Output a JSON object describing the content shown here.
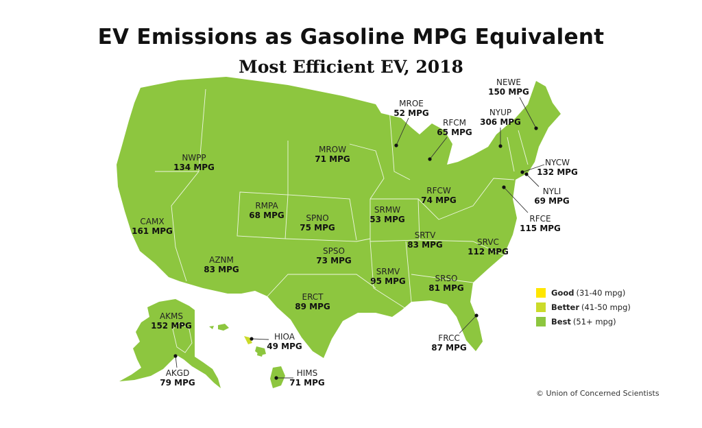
{
  "title": "EV Emissions as Gasoline MPG Equivalent",
  "subtitle": "Most Efficient EV, 2018",
  "colors": {
    "good": "#ffe600",
    "better": "#cbdb2a",
    "best": "#8dc63f",
    "border": "#ffffff"
  },
  "legend": [
    {
      "category": "good",
      "label": "Good",
      "range": "(31-40 mpg)"
    },
    {
      "category": "better",
      "label": "Better",
      "range": "(41-50 mpg)"
    },
    {
      "category": "best",
      "label": "Best",
      "range": "(51+ mpg)"
    }
  ],
  "regions": [
    {
      "code": "NEWE",
      "mpg": "150 MPG",
      "category": "best"
    },
    {
      "code": "NYUP",
      "mpg": "306 MPG",
      "category": "best"
    },
    {
      "code": "MROE",
      "mpg": "52 MPG",
      "category": "best"
    },
    {
      "code": "RFCM",
      "mpg": "65 MPG",
      "category": "best"
    },
    {
      "code": "NYCW",
      "mpg": "132 MPG",
      "category": "best"
    },
    {
      "code": "NYLI",
      "mpg": "69 MPG",
      "category": "best"
    },
    {
      "code": "RFCE",
      "mpg": "115 MPG",
      "category": "best"
    },
    {
      "code": "NWPP",
      "mpg": "134 MPG",
      "category": "best"
    },
    {
      "code": "MROW",
      "mpg": "71 MPG",
      "category": "best"
    },
    {
      "code": "CAMX",
      "mpg": "161 MPG",
      "category": "best"
    },
    {
      "code": "RMPA",
      "mpg": "68 MPG",
      "category": "best"
    },
    {
      "code": "SPNO",
      "mpg": "75 MPG",
      "category": "best"
    },
    {
      "code": "SRMW",
      "mpg": "53 MPG",
      "category": "best"
    },
    {
      "code": "RFCW",
      "mpg": "74 MPG",
      "category": "best"
    },
    {
      "code": "SRTV",
      "mpg": "83 MPG",
      "category": "best"
    },
    {
      "code": "SRVC",
      "mpg": "112 MPG",
      "category": "best"
    },
    {
      "code": "AZNM",
      "mpg": "83 MPG",
      "category": "best"
    },
    {
      "code": "SPSO",
      "mpg": "73 MPG",
      "category": "best"
    },
    {
      "code": "SRMV",
      "mpg": "95 MPG",
      "category": "best"
    },
    {
      "code": "SRSO",
      "mpg": "81 MPG",
      "category": "best"
    },
    {
      "code": "ERCT",
      "mpg": "89 MPG",
      "category": "best"
    },
    {
      "code": "FRCC",
      "mpg": "87 MPG",
      "category": "best"
    },
    {
      "code": "AKMS",
      "mpg": "152 MPG",
      "category": "best"
    },
    {
      "code": "AKGD",
      "mpg": "79 MPG",
      "category": "best"
    },
    {
      "code": "HIOA",
      "mpg": "49 MPG",
      "category": "better"
    },
    {
      "code": "HIMS",
      "mpg": "71 MPG",
      "category": "best"
    }
  ],
  "credit": "© Union of Concerned Scientists"
}
